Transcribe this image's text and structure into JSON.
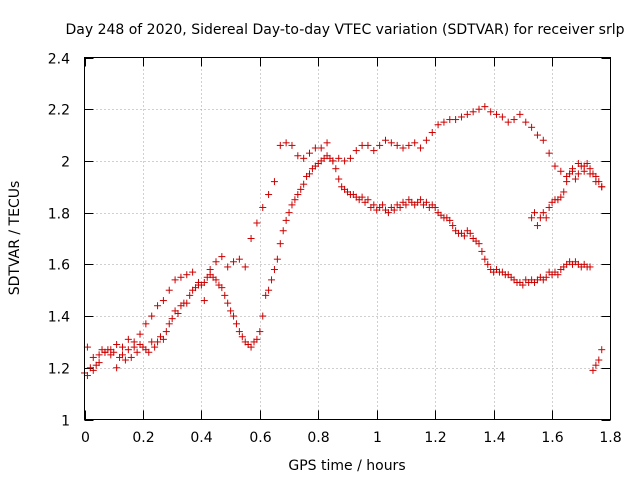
{
  "chart_data": {
    "type": "scatter",
    "title": "Day 248 of 2020, Sidereal Day-to-day VTEC variation (SDTVAR) for receiver srlp",
    "xlabel": "GPS time / hours",
    "ylabel": "SDTVAR / TECUs",
    "xlim": [
      0,
      1.8
    ],
    "ylim": [
      1,
      2.4
    ],
    "grid": true,
    "marker": "+",
    "marker_color": "#cc0000",
    "x_ticks": [
      "0",
      "0.2",
      "0.4",
      "0.6",
      "0.8",
      "1",
      "1.2",
      "1.4",
      "1.6",
      "1.8"
    ],
    "y_ticks": [
      "1",
      "1.2",
      "1.4",
      "1.6",
      "1.8",
      "2",
      "2.2",
      "2.4"
    ],
    "series": [
      {
        "name": "SDTVAR",
        "x": [
          0.0,
          0.01,
          0.02,
          0.03,
          0.04,
          0.05,
          0.06,
          0.07,
          0.08,
          0.09,
          0.1,
          0.11,
          0.12,
          0.13,
          0.14,
          0.15,
          0.16,
          0.17,
          0.18,
          0.19,
          0.2,
          0.21,
          0.22,
          0.23,
          0.24,
          0.25,
          0.26,
          0.27,
          0.28,
          0.29,
          0.3,
          0.31,
          0.32,
          0.33,
          0.34,
          0.35,
          0.36,
          0.37,
          0.38,
          0.39,
          0.4,
          0.41,
          0.42,
          0.43,
          0.44,
          0.45,
          0.46,
          0.47,
          0.48,
          0.49,
          0.5,
          0.51,
          0.52,
          0.53,
          0.54,
          0.55,
          0.56,
          0.57,
          0.58,
          0.59,
          0.6,
          0.61,
          0.62,
          0.63,
          0.64,
          0.65,
          0.66,
          0.67,
          0.68,
          0.69,
          0.7,
          0.71,
          0.72,
          0.73,
          0.74,
          0.75,
          0.76,
          0.77,
          0.78,
          0.79,
          0.8,
          0.81,
          0.82,
          0.83,
          0.84,
          0.85,
          0.86,
          0.87,
          0.88,
          0.89,
          0.9,
          0.91,
          0.92,
          0.93,
          0.94,
          0.95,
          0.96,
          0.97,
          0.98,
          0.99,
          1.0,
          1.01,
          1.02,
          1.03,
          1.04,
          1.05,
          1.06,
          1.07,
          1.08,
          1.09,
          1.1,
          1.11,
          1.12,
          1.13,
          1.14,
          1.15,
          1.16,
          1.17,
          1.18,
          1.19,
          1.2,
          1.21,
          1.22,
          1.23,
          1.24,
          1.25,
          1.26,
          1.27,
          1.28,
          1.29,
          1.3,
          1.31,
          1.32,
          1.33,
          1.34,
          1.35,
          1.36,
          1.37,
          1.38,
          1.39,
          1.4,
          1.41,
          1.42,
          1.43,
          1.44,
          1.45,
          1.46,
          1.47,
          1.48,
          1.49,
          1.5,
          1.51,
          1.52,
          1.53,
          1.54,
          1.55,
          1.56,
          1.57,
          1.58,
          1.59,
          1.6,
          1.61,
          1.62,
          1.63,
          1.64,
          1.65,
          1.66,
          1.67,
          1.68,
          1.69,
          1.7,
          1.71,
          1.72,
          1.73,
          1.74,
          1.75,
          1.76,
          1.77,
          0.01,
          0.03,
          0.05,
          0.07,
          0.09,
          0.11,
          0.13,
          0.15,
          0.17,
          0.19,
          0.21,
          0.23,
          0.25,
          0.27,
          0.29,
          0.31,
          0.33,
          0.35,
          0.37,
          0.39,
          0.41,
          0.43,
          0.45,
          0.47,
          0.49,
          0.51,
          0.53,
          0.55,
          0.57,
          0.59,
          0.61,
          0.63,
          0.65,
          0.67,
          0.69,
          0.71,
          0.73,
          0.75,
          0.77,
          0.79,
          0.81,
          0.83,
          0.85,
          0.87,
          0.89,
          0.91,
          0.93,
          0.95,
          0.97,
          0.99,
          1.01,
          1.03,
          1.05,
          1.07,
          1.09,
          1.11,
          1.13,
          1.15,
          1.17,
          1.19,
          1.21,
          1.23,
          1.25,
          1.27,
          1.29,
          1.31,
          1.33,
          1.35,
          1.37,
          1.39,
          1.41,
          1.43,
          1.45,
          1.47,
          1.49,
          1.51,
          1.53,
          1.55,
          1.57,
          1.59,
          1.61,
          1.63,
          1.65,
          1.67,
          1.69,
          1.71,
          1.73,
          1.75,
          1.77,
          1.53,
          1.54,
          1.55,
          1.56,
          1.57,
          1.58,
          1.59,
          1.6,
          1.61,
          1.62,
          1.63,
          1.64,
          1.65,
          1.66,
          1.67,
          1.68,
          1.69,
          1.7,
          1.71,
          1.72,
          1.73,
          1.74,
          1.75,
          1.76,
          1.77
        ],
        "y": [
          1.18,
          1.17,
          1.2,
          1.19,
          1.21,
          1.22,
          1.27,
          1.26,
          1.27,
          1.25,
          1.26,
          1.2,
          1.24,
          1.25,
          1.23,
          1.27,
          1.24,
          1.28,
          1.26,
          1.29,
          1.28,
          1.27,
          1.26,
          1.3,
          1.28,
          1.3,
          1.32,
          1.31,
          1.34,
          1.37,
          1.39,
          1.42,
          1.41,
          1.44,
          1.45,
          1.45,
          1.48,
          1.5,
          1.51,
          1.53,
          1.52,
          1.53,
          1.55,
          1.56,
          1.55,
          1.54,
          1.52,
          1.51,
          1.48,
          1.45,
          1.42,
          1.4,
          1.37,
          1.34,
          1.32,
          1.3,
          1.29,
          1.28,
          1.3,
          1.31,
          1.34,
          1.4,
          1.48,
          1.5,
          1.54,
          1.58,
          1.62,
          1.68,
          1.73,
          1.77,
          1.8,
          1.83,
          1.85,
          1.87,
          1.89,
          1.91,
          1.94,
          1.95,
          1.97,
          1.98,
          1.99,
          2.0,
          2.01,
          2.02,
          2.01,
          2.0,
          1.97,
          1.93,
          1.9,
          1.89,
          1.88,
          1.87,
          1.87,
          1.86,
          1.85,
          1.86,
          1.84,
          1.85,
          1.82,
          1.83,
          1.81,
          1.82,
          1.83,
          1.81,
          1.8,
          1.82,
          1.81,
          1.83,
          1.82,
          1.84,
          1.83,
          1.85,
          1.84,
          1.83,
          1.84,
          1.85,
          1.83,
          1.84,
          1.82,
          1.83,
          1.82,
          1.8,
          1.79,
          1.78,
          1.78,
          1.77,
          1.75,
          1.73,
          1.72,
          1.72,
          1.71,
          1.73,
          1.72,
          1.7,
          1.69,
          1.68,
          1.65,
          1.62,
          1.6,
          1.58,
          1.57,
          1.58,
          1.57,
          1.57,
          1.56,
          1.56,
          1.55,
          1.54,
          1.53,
          1.53,
          1.52,
          1.54,
          1.53,
          1.54,
          1.53,
          1.54,
          1.55,
          1.54,
          1.55,
          1.57,
          1.56,
          1.57,
          1.56,
          1.58,
          1.59,
          1.6,
          1.61,
          1.6,
          1.61,
          1.6,
          1.59,
          1.6,
          1.59,
          1.59,
          1.19,
          1.21,
          1.23,
          1.27,
          1.28,
          1.24,
          1.25,
          1.26,
          1.27,
          1.29,
          1.28,
          1.31,
          1.3,
          1.33,
          1.37,
          1.4,
          1.44,
          1.46,
          1.5,
          1.54,
          1.55,
          1.56,
          1.57,
          1.52,
          1.46,
          1.58,
          1.61,
          1.63,
          1.59,
          1.61,
          1.62,
          1.59,
          1.7,
          1.76,
          1.82,
          1.87,
          1.92,
          2.06,
          2.07,
          2.06,
          2.02,
          2.01,
          2.03,
          2.05,
          2.05,
          2.07,
          2.0,
          2.01,
          2.0,
          2.01,
          2.04,
          2.06,
          2.06,
          2.04,
          2.06,
          2.08,
          2.07,
          2.06,
          2.05,
          2.06,
          2.07,
          2.05,
          2.08,
          2.11,
          2.14,
          2.15,
          2.16,
          2.16,
          2.17,
          2.18,
          2.19,
          2.2,
          2.21,
          2.19,
          2.18,
          2.17,
          2.15,
          2.16,
          2.18,
          2.15,
          2.13,
          2.1,
          2.08,
          2.03,
          1.98,
          1.96,
          1.94,
          1.97,
          1.99,
          1.98,
          1.95,
          1.92,
          1.9,
          1.78,
          1.8,
          1.75,
          1.78,
          1.8,
          1.78,
          1.82,
          1.84,
          1.85,
          1.85,
          1.86,
          1.88,
          1.92,
          1.95,
          1.96,
          1.93,
          1.95,
          1.98,
          1.96,
          1.99,
          1.97,
          1.95,
          1.94,
          1.92,
          1.9
        ]
      }
    ]
  }
}
